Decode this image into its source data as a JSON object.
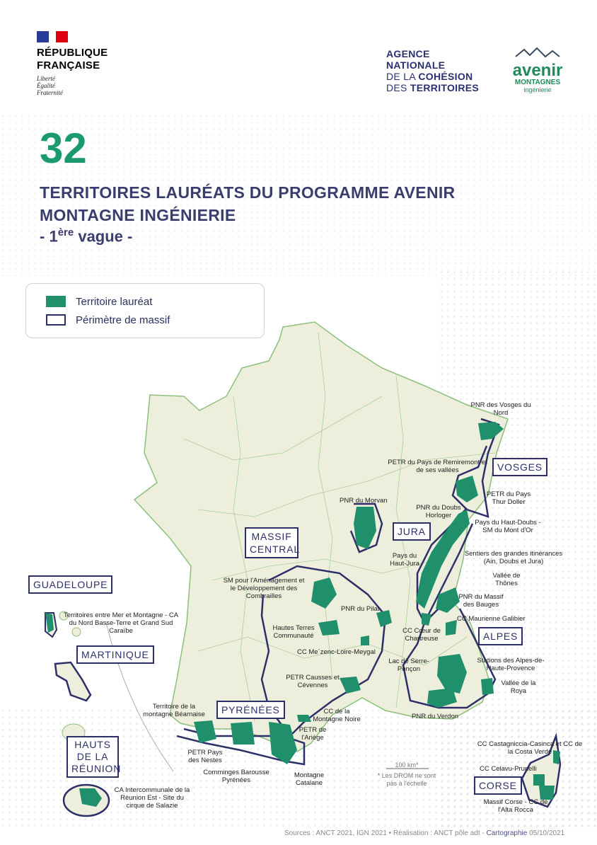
{
  "header": {
    "republique": {
      "line1": "RÉPUBLIQUE",
      "line2": "FRANÇAISE",
      "motto": [
        "Liberté",
        "Égalité",
        "Fraternité"
      ]
    },
    "anct": {
      "line1": "AGENCE",
      "line2": "NATIONALE",
      "line3_light": "DE LA ",
      "line3_bold": "COHÉSION",
      "line4_light": "DES ",
      "line4_bold": "TERRITOIRES"
    },
    "avenir": {
      "name": "avenir",
      "sub": "MONTAGNES",
      "sub2": "ingénierie"
    }
  },
  "title": {
    "count": "32",
    "line1": "TERRITOIRES LAURÉATS DU PROGRAMME AVENIR",
    "line2": "MONTAGNE INGÉNIERIE",
    "wave_prefix": "- 1",
    "wave_sup": "ère",
    "wave_suffix": " vague -"
  },
  "legend": [
    {
      "label": "Territoire lauréat",
      "color": "#1f8f6c"
    },
    {
      "label": "Périmètre de massif",
      "color": "#2d3068"
    }
  ],
  "colors": {
    "laureat": "#1f8f6c",
    "massif": "#2d3068",
    "land": "#eeeedd",
    "borders": "#8cc07a",
    "accent": "#1c9a6f"
  },
  "massifs": [
    "VOSGES",
    "JURA",
    "MASSIF CENTRAL",
    "ALPES",
    "PYRÉNÉES",
    "CORSE",
    "GUADELOUPE",
    "MARTINIQUE",
    "HAUTS DE LA RÉUNION"
  ],
  "territories": [
    "PNR des Vosges du Nord",
    "PETR du Pays de Remiremont et de ses vallées",
    "PETR du Pays Thur Doller",
    "PNR du Morvan",
    "PNR du Doubs Horloger",
    "Pays du Haut-Doubs - SM du Mont d'Or",
    "Sentiers des grandes itinérances (Ain, Doubs et Jura)",
    "Pays du Haut-Jura",
    "Vallée de Thônes",
    "PNR du Massif des Bauges",
    "CC Maurienne Galibier",
    "CC Cœur de Chartreuse",
    "SM pour l'Aménagement et le Développement des Combrailles",
    "PNR du Pilat",
    "Hautes Terres Communauté",
    "CC Me´zenc-Loire-Meygal",
    "Lac de Serre-Ponçon",
    "Stations des Alpes-de-Haute-Provence",
    "Vallée de la Roya",
    "PNR du Verdon",
    "PETR Causses et Cévennes",
    "CC de la Montagne Noire",
    "Territoire de la montagne Béarnaise",
    "PETR de l'Ariège",
    "PETR Pays des Nestes",
    "Comminges Barousse Pyrénées",
    "Montagne Catalane",
    "Territoires entre Mer et Montagne - CA du Nord Basse-Terre et Grand Sud Caraïbe",
    "CA Intercommunale de la Réunion Est - Site du cirque de Salazie",
    "CC Castagniccia-Casinca et CC de la Costa Verde",
    "CC Celavu-Prunelli",
    "Massif Corse - CC de l'Alta Rocca"
  ],
  "scale": {
    "label": "100 km*",
    "note1": "* Les DROM ne sont",
    "note2": "pas à l'échelle"
  },
  "footer": {
    "sources": "Sources : ANCT 2021, IGN 2021 • Réalisation : ANCT pôle adt - ",
    "carto": "Cartographie",
    "date": " 05/10/2021"
  }
}
